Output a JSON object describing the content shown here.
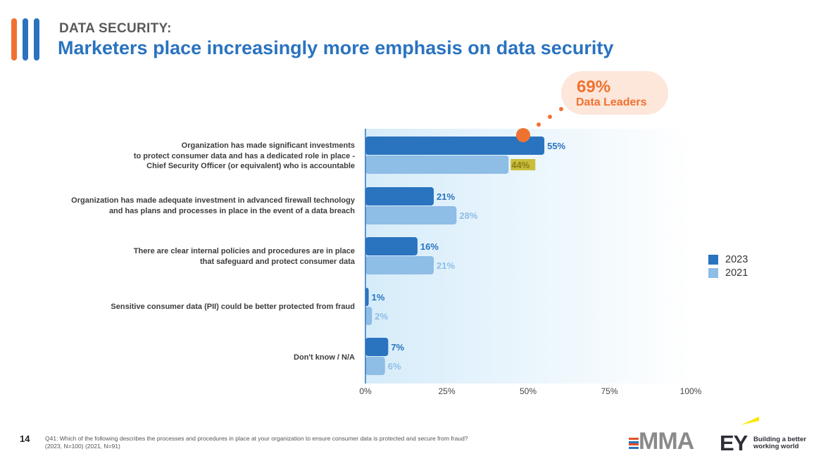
{
  "header": {
    "section_label": "DATA SECURITY:",
    "title": "Marketers place increasingly more emphasis on data security"
  },
  "callout": {
    "value": "69%",
    "label": "Data Leaders"
  },
  "legend": [
    {
      "label": "2023",
      "color": "#2a73bf"
    },
    {
      "label": "2021",
      "color": "#8ebde6"
    }
  ],
  "chart_data": {
    "type": "bar",
    "orientation": "horizontal",
    "categories": [
      "Organization has made significant investments to protect consumer data and has a dedicated role in place - Chief Security Officer (or equivalent) who is accountable",
      "Organization has made adequate investment in advanced firewall technology and has plans and processes in place in the event of a data breach",
      "There are clear internal policies and procedures are in place that safeguard and protect consumer data",
      "Sensitive consumer data (PII) could be better protected from fraud",
      "Don't know / N/A"
    ],
    "series": [
      {
        "name": "2023",
        "values": [
          55,
          21,
          16,
          1,
          7
        ],
        "labels": [
          "55%",
          "21%",
          "16%",
          "1%",
          "7%"
        ]
      },
      {
        "name": "2021",
        "values": [
          44,
          28,
          21,
          2,
          6
        ],
        "labels": [
          "44%",
          "28%",
          "21%",
          "2%",
          "6%"
        ]
      }
    ],
    "xlim": [
      0,
      100
    ],
    "xticks": [
      0,
      25,
      50,
      75,
      100
    ],
    "xtick_labels": [
      "0%",
      "25%",
      "50%",
      "75%",
      "100%"
    ],
    "highlight": {
      "series": "2023",
      "category_index": 0,
      "value": 69,
      "label": "Data Leaders"
    },
    "legend_position": "right"
  },
  "category_labels": [
    [
      "Organization has made significant investments",
      "to protect consumer data and has a dedicated role in place -",
      "Chief Security Officer (or equivalent) who is accountable"
    ],
    [
      "Organization has made adequate investment in advanced firewall technology",
      "and has plans and processes in place in the event of a data breach"
    ],
    [
      "There are clear internal policies and procedures are in place",
      "that safeguard and protect consumer data"
    ],
    [
      "Sensitive consumer data (PII) could be better protected from fraud"
    ],
    [
      "Don't know / N/A"
    ]
  ],
  "footer": {
    "page_number": "14",
    "note_line1": "Q41:  Which of the following describes the processes and procedures in place at your organization to ensure consumer data is protected and secure from fraud?",
    "note_line2": "(2023, N=100) (2021, N=91)",
    "mma_logo": "MMA",
    "ey_logo": "EY",
    "ey_tagline_1": "Building a better",
    "ey_tagline_2": "working world"
  },
  "colors": {
    "accent_orange": "#f07230",
    "accent_blue": "#2a73bf",
    "series_2023": "#2a73bf",
    "series_2021": "#8ebde6",
    "callout_bg": "#fde6da",
    "highlight_label_bg": "#c9bd3c"
  }
}
